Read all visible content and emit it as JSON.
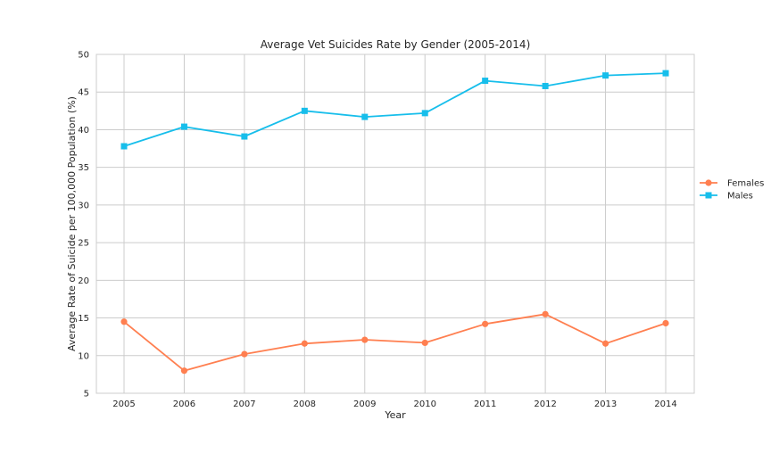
{
  "chart_data": {
    "type": "line",
    "title": "Average Vet Suicides Rate by Gender (2005-2014)",
    "xlabel": "Year",
    "ylabel": "Average Rate of Suicide per 100,000 Population (%)",
    "categories": [
      "2005",
      "2006",
      "2007",
      "2008",
      "2009",
      "2010",
      "2011",
      "2012",
      "2013",
      "2014"
    ],
    "ylim": [
      5,
      50
    ],
    "yticks": [
      "5",
      "10",
      "15",
      "20",
      "25",
      "30",
      "35",
      "40",
      "45",
      "50"
    ],
    "grid": true,
    "legend_position": "right",
    "series": [
      {
        "name": "Females",
        "color": "#FF7F50",
        "marker": "circle",
        "values": [
          14.5,
          8.0,
          10.2,
          11.6,
          12.1,
          11.7,
          14.2,
          15.5,
          11.6,
          14.3
        ]
      },
      {
        "name": "Males",
        "color": "#17BEEB",
        "marker": "square",
        "values": [
          37.8,
          40.4,
          39.1,
          42.5,
          41.7,
          42.2,
          46.5,
          45.8,
          47.2,
          47.5
        ]
      }
    ]
  }
}
